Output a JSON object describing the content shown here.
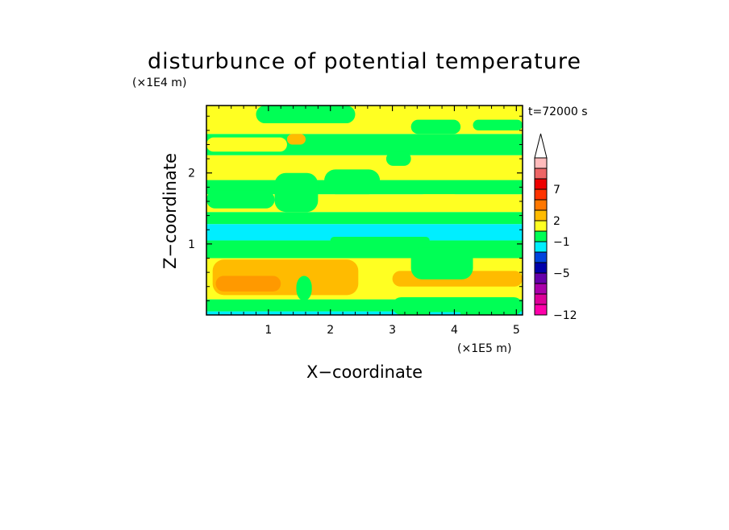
{
  "chart_data": {
    "type": "heatmap",
    "title": "disturbunce of potential temperature",
    "xlabel": "X−coordinate",
    "ylabel": "Z−coordinate",
    "x_unit": "(×1E5 m)",
    "y_unit": "(×1E4 m)",
    "time_label": "t=72000 s",
    "xlim": [
      0,
      5.1
    ],
    "ylim": [
      0,
      2.95
    ],
    "x_ticks": [
      {
        "value": 1,
        "label": "1"
      },
      {
        "value": 2,
        "label": "2"
      },
      {
        "value": 3,
        "label": "3"
      },
      {
        "value": 4,
        "label": "4"
      },
      {
        "value": 5,
        "label": "5"
      }
    ],
    "y_ticks": [
      {
        "value": 1,
        "label": "1"
      },
      {
        "value": 2,
        "label": "2"
      }
    ],
    "colorbar": {
      "levels": [
        {
          "color": "#ff00aa"
        },
        {
          "color": "#dd0099"
        },
        {
          "color": "#aa00aa"
        },
        {
          "color": "#6600aa"
        },
        {
          "color": "#0000aa"
        },
        {
          "color": "#0044dd"
        },
        {
          "color": "#00eeff"
        },
        {
          "color": "#00ff55"
        },
        {
          "color": "#ffff22"
        },
        {
          "color": "#ffbb00"
        },
        {
          "color": "#ff7700"
        },
        {
          "color": "#ff3300"
        },
        {
          "color": "#ee0000"
        },
        {
          "color": "#ee6666"
        },
        {
          "color": "#ffbbbb"
        }
      ],
      "labels": [
        {
          "text": "−12",
          "boundary": 0
        },
        {
          "text": "−5",
          "boundary": 4
        },
        {
          "text": "−1",
          "boundary": 7
        },
        {
          "text": "2",
          "boundary": 9
        },
        {
          "text": "7",
          "boundary": 12
        }
      ],
      "extend_max": true
    },
    "bands": [
      {
        "z0": 0.0,
        "z1": 0.05,
        "color": "#00eeff"
      },
      {
        "z0": 0.05,
        "z1": 0.22,
        "color": "#00ff55"
      },
      {
        "z0": 0.22,
        "z1": 0.8,
        "color": "#ffff22"
      },
      {
        "z0": 0.8,
        "z1": 1.05,
        "color": "#00ff55"
      },
      {
        "z0": 1.05,
        "z1": 1.28,
        "color": "#00eeff"
      },
      {
        "z0": 1.28,
        "z1": 1.45,
        "color": "#00ff55"
      },
      {
        "z0": 1.45,
        "z1": 1.7,
        "color": "#ffff22"
      },
      {
        "z0": 1.7,
        "z1": 1.9,
        "color": "#00ff55"
      },
      {
        "z0": 1.9,
        "z1": 2.25,
        "color": "#ffff22"
      },
      {
        "z0": 2.25,
        "z1": 2.55,
        "color": "#00ff55"
      },
      {
        "z0": 2.55,
        "z1": 2.95,
        "color": "#ffff22"
      }
    ],
    "patches": [
      {
        "x0": 0.1,
        "x1": 2.45,
        "z0": 0.28,
        "z1": 0.78,
        "color": "#ffbb00"
      },
      {
        "x0": 0.15,
        "x1": 1.2,
        "z0": 0.33,
        "z1": 0.55,
        "color": "#ff9900"
      },
      {
        "x0": 3.0,
        "x1": 5.1,
        "z0": 0.4,
        "z1": 0.62,
        "color": "#ffbb00"
      },
      {
        "x0": 1.45,
        "x1": 1.7,
        "z0": 0.2,
        "z1": 0.55,
        "color": "#00ff55"
      },
      {
        "x0": 3.3,
        "x1": 4.3,
        "z0": 0.5,
        "z1": 0.95,
        "color": "#00ff55"
      },
      {
        "x0": 3.0,
        "x1": 5.1,
        "z0": 0.0,
        "z1": 0.25,
        "color": "#00ff55"
      },
      {
        "x0": 3.6,
        "x1": 4.1,
        "z0": 0.0,
        "z1": 0.04,
        "color": "#00eeff"
      },
      {
        "x0": 2.0,
        "x1": 3.6,
        "z0": 1.0,
        "z1": 1.1,
        "color": "#00ff55"
      },
      {
        "x0": 0.0,
        "x1": 1.1,
        "z0": 1.5,
        "z1": 1.75,
        "color": "#00ff55"
      },
      {
        "x0": 1.1,
        "x1": 1.8,
        "z0": 1.45,
        "z1": 2.0,
        "color": "#00ff55"
      },
      {
        "x0": 1.9,
        "x1": 2.8,
        "z0": 1.7,
        "z1": 2.05,
        "color": "#00ff55"
      },
      {
        "x0": 3.4,
        "x1": 4.1,
        "z0": 1.5,
        "z1": 1.7,
        "color": "#ffff22"
      },
      {
        "x0": 0.0,
        "x1": 1.3,
        "z0": 2.3,
        "z1": 2.5,
        "color": "#ffff22"
      },
      {
        "x0": 1.3,
        "x1": 1.6,
        "z0": 2.4,
        "z1": 2.55,
        "color": "#ffbb00"
      },
      {
        "x0": 0.8,
        "x1": 2.4,
        "z0": 2.7,
        "z1": 2.95,
        "color": "#00ff55"
      },
      {
        "x0": 3.3,
        "x1": 4.1,
        "z0": 2.55,
        "z1": 2.75,
        "color": "#00ff55"
      },
      {
        "x0": 4.3,
        "x1": 5.1,
        "z0": 2.6,
        "z1": 2.75,
        "color": "#00ff55"
      },
      {
        "x0": 2.9,
        "x1": 3.3,
        "z0": 2.1,
        "z1": 2.3,
        "color": "#00ff55"
      }
    ]
  }
}
